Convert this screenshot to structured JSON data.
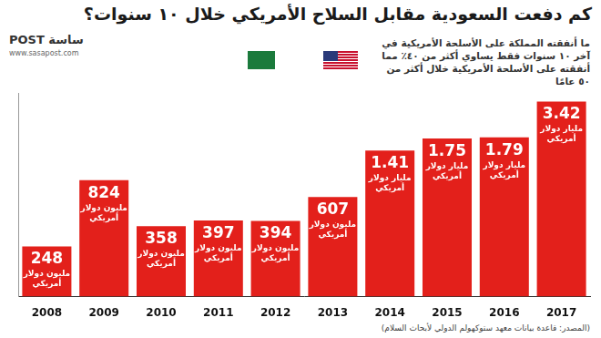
{
  "chart_data": {
    "type": "bar",
    "title": "كم دفعت السعودية مقابل السلاح الأمريكي خلال ١٠ سنوات؟",
    "subtitle": "ما أنفقته المملكة على الأسلحة الأمريكية في آخر ١٠ سنوات فقط يساوي أكثر من ٤٠٪ مما أنفقته على الأسلحة الأمريكية خلال أكثر من ٥٠ عامًا",
    "source": "(المصدر: قاعدة بيانات معهد ستوكهولم الدولي لأبحاث السلام)",
    "logo": "ساسة POST",
    "website": "www.sasapost.com",
    "categories": [
      "2008",
      "2009",
      "2010",
      "2011",
      "2012",
      "2013",
      "2014",
      "2015",
      "2016",
      "2017"
    ],
    "values": [
      248,
      824,
      358,
      397,
      394,
      607,
      1410,
      1750,
      1790,
      3420
    ],
    "value_labels": [
      "248 مليون دولار أمريكي",
      "824 مليون دولار أمريكي",
      "358 مليون دولار أمريكي",
      "397 مليون دولار أمريكي",
      "394 مليون دولار أمريكي",
      "607 مليون دولار أمريكي",
      "1.41 مليار دولار أمريكي",
      "1.75 مليار دولار أمريكي",
      "1.79 مليار دولار أمريكي",
      "3.42 مليار دولار أمريكي"
    ],
    "color": "#e3201b",
    "log": "y",
    "ylim": [
      100,
      4000
    ],
    "data_labels": true,
    "tick_labels": "x",
    "grid": false
  }
}
